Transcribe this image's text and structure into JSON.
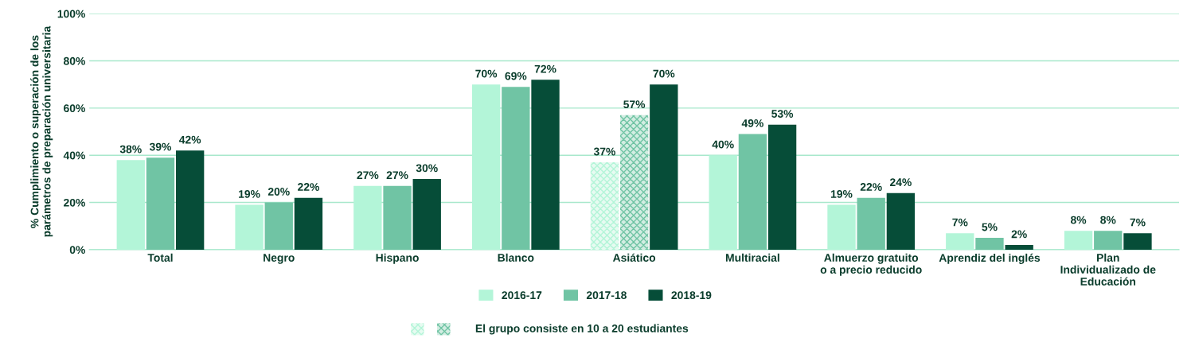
{
  "chart_data": {
    "type": "bar",
    "ylabel": "% Cumplimiento o superación de los parámetros de preparación universitaria",
    "categories": [
      "Total",
      "Negro",
      "Hispano",
      "Blanco",
      "Asiático",
      "Multiracial",
      "Almuerzo gratuito\no a precio reducido",
      "Aprendiz del inglés",
      "Plan\nIndividualizado de\nEducación"
    ],
    "series": [
      {
        "name": "2016-17",
        "color": "#b3f5d8",
        "values": [
          38,
          19,
          27,
          70,
          37,
          40,
          19,
          7,
          8
        ],
        "colors": [
          "#b3f5d8",
          "#b3f5d8",
          "#b3f5d8",
          "#b3f5d8",
          "#e6fbf1",
          "#b3f5d8",
          "#b3f5d8",
          "#b3f5d8",
          "#b3f5d8"
        ],
        "value_labels": [
          "38%",
          "19%",
          "27%",
          "70%",
          "37%",
          "40%",
          "19%",
          "7%",
          "8%"
        ]
      },
      {
        "name": "2017-18",
        "color": "#70c4a4",
        "values": [
          39,
          20,
          27,
          69,
          57,
          49,
          22,
          5,
          8
        ],
        "colors": [
          "#70c4a4",
          "#70c4a4",
          "#70c4a4",
          "#70c4a4",
          "#d2ede2",
          "#70c4a4",
          "#70c4a4",
          "#70c4a4",
          "#70c4a4"
        ],
        "value_labels": [
          "39%",
          "20%",
          "27%",
          "69%",
          "57%",
          "49%",
          "22%",
          "5%",
          "8%"
        ]
      },
      {
        "name": "2018-19",
        "color": "#064d38",
        "values": [
          42,
          22,
          30,
          72,
          70,
          53,
          24,
          2,
          7
        ],
        "value_labels": [
          "42%",
          "22%",
          "30%",
          "72%",
          "70%",
          "53%",
          "24%",
          "2%",
          "7%"
        ]
      }
    ],
    "ylim": [
      0,
      100
    ],
    "yticks": [
      {
        "value": 0,
        "label": "0%"
      },
      {
        "value": 20,
        "label": "20%"
      },
      {
        "value": 40,
        "label": "40%"
      },
      {
        "value": 60,
        "label": "60%"
      },
      {
        "value": 80,
        "label": "80%"
      },
      {
        "value": 100,
        "label": "100%"
      }
    ],
    "grid": "y",
    "legend": "bottom",
    "annotations": [
      "El grupo consiste en 10 a 20 estudiantes"
    ]
  }
}
